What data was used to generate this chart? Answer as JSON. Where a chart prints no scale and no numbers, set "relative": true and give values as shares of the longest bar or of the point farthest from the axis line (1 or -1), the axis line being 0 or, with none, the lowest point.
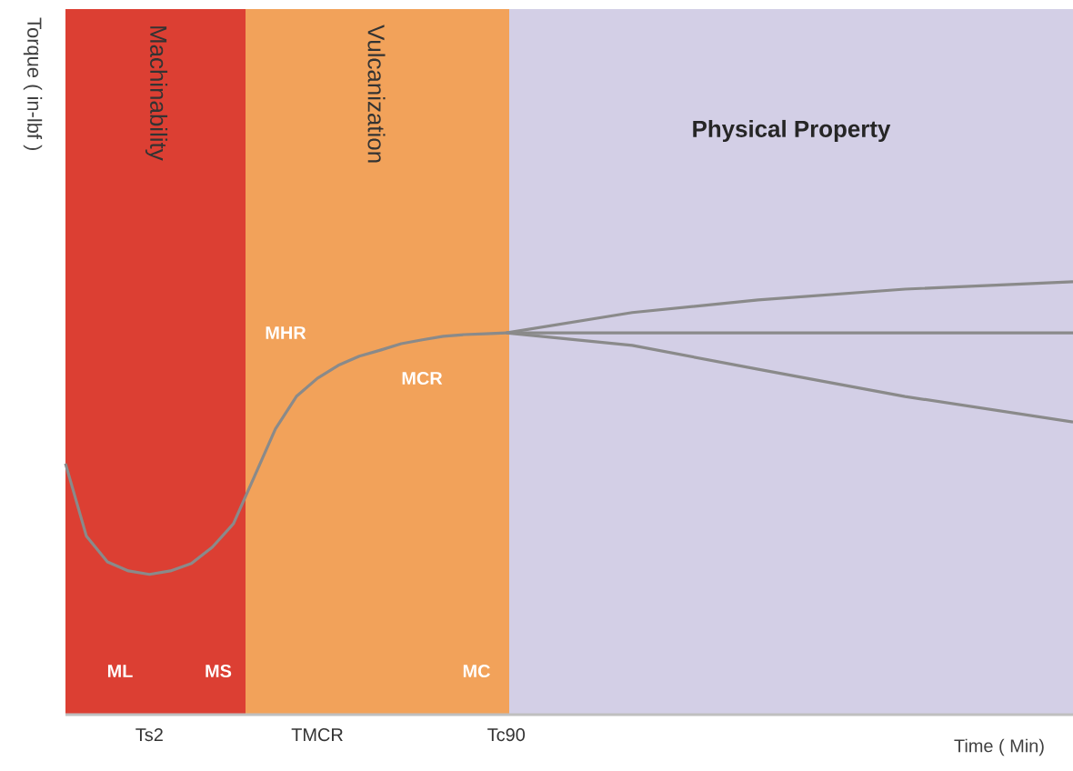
{
  "chart_data": {
    "type": "line",
    "relative": true,
    "xlabel": "Time ( Min)",
    "categories": [
      null,
      null,
      null,
      null,
      "Ts2",
      null,
      null,
      null,
      null,
      null,
      null,
      null,
      "TMCR",
      null,
      null,
      null,
      null,
      null,
      null,
      null,
      null,
      "Tc90",
      null,
      null,
      null,
      null,
      null,
      null,
      null,
      null,
      null,
      null,
      null,
      null,
      null,
      null,
      null,
      null,
      null,
      null,
      null,
      null,
      null,
      null,
      null,
      null,
      null,
      null,
      null
    ],
    "series": [
      {
        "color": "#8a8a8a",
        "values": [
          0.58,
          0.412,
          0.353,
          0.332,
          0.324,
          0.332,
          0.349,
          0.387,
          0.441,
          0.55,
          0.66,
          0.735,
          0.777,
          0.807,
          0.828,
          0.842,
          0.857,
          0.866,
          0.874,
          0.878,
          0.88,
          0.882,
          null,
          null,
          null,
          null,
          null,
          null,
          null,
          null,
          null,
          null,
          null,
          null,
          null,
          null,
          null,
          null,
          null,
          null,
          null,
          null,
          null,
          null,
          null,
          null,
          null,
          null,
          0.882
        ]
      },
      {
        "color": "#8a8a8a",
        "values": [
          null,
          null,
          null,
          null,
          null,
          null,
          null,
          null,
          null,
          null,
          null,
          null,
          null,
          null,
          null,
          null,
          null,
          null,
          null,
          null,
          null,
          0.882,
          null,
          null,
          null,
          null,
          null,
          0.929,
          null,
          null,
          null,
          null,
          null,
          0.958,
          null,
          null,
          null,
          null,
          null,
          null,
          0.983,
          null,
          null,
          null,
          null,
          null,
          null,
          null,
          1.0
        ]
      },
      {
        "color": "#8a8a8a",
        "values": [
          null,
          null,
          null,
          null,
          null,
          null,
          null,
          null,
          null,
          null,
          null,
          null,
          null,
          null,
          null,
          null,
          null,
          null,
          null,
          null,
          null,
          0.882,
          null,
          null,
          null,
          null,
          null,
          0.853,
          null,
          null,
          null,
          null,
          null,
          0.798,
          null,
          null,
          null,
          null,
          null,
          null,
          0.735,
          null,
          null,
          null,
          null,
          null,
          null,
          null,
          0.676
        ]
      }
    ],
    "annotations": [
      "Machinability",
      "Vulcanization",
      "Physical Property",
      "Torque ( in-lbf )",
      "ML",
      "MS",
      "MC",
      "MHR",
      "MCR"
    ],
    "line_style": "solid"
  }
}
